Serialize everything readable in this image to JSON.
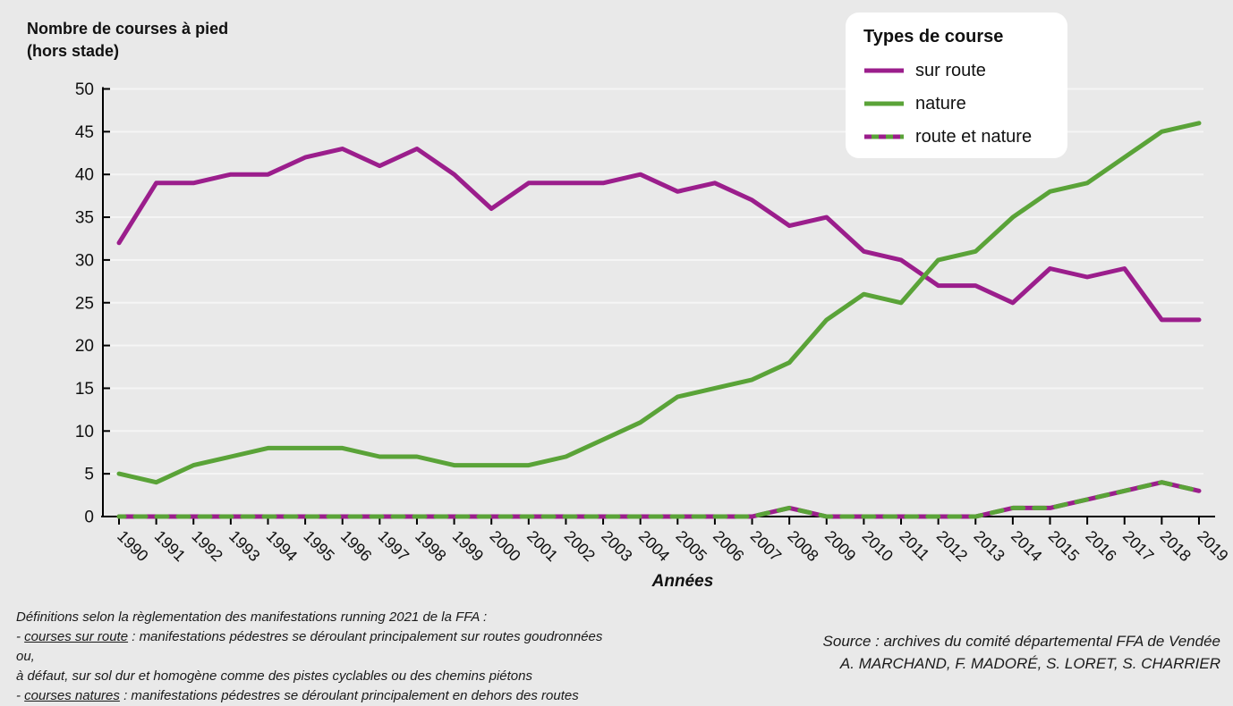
{
  "title": {
    "line1": "Nombre de courses à pied",
    "line2": "(hors stade)"
  },
  "legend": {
    "title": "Types de course",
    "items": [
      {
        "label": "sur route",
        "swatch": "solid-purple"
      },
      {
        "label": "nature",
        "swatch": "solid-green"
      },
      {
        "label": "route et nature",
        "swatch": "dashed-purple-green"
      }
    ]
  },
  "x_axis_title": "Années",
  "footnote": {
    "line1": "Définitions selon la règlementation des manifestations running 2021 de la FFA :",
    "line2_prefix": "- ",
    "line2_underlined": "courses sur route",
    "line2_rest": " : manifestations pédestres se déroulant principalement sur routes goudronnées ou,",
    "line3": "à défaut, sur sol dur et homogène comme des pistes cyclables ou des chemins piétons",
    "line4_prefix": "- ",
    "line4_underlined": "courses natures",
    "line4_rest": " : manifestations pédestres se déroulant principalement en dehors des routes"
  },
  "source": {
    "line1": "Source : archives du comité départemental FFA de Vendée",
    "line2": "A. MARCHAND, F. MADORÉ, S. LORET, S. CHARRIER"
  },
  "colors": {
    "purple": "#9B1E8C",
    "green": "#5AA338",
    "background": "#E9E9E9",
    "gridline": "#F5F5F5",
    "axis": "#000000",
    "legend_background": "#FFFFFF",
    "text": "#111111"
  },
  "chart_data": {
    "type": "line",
    "title": "Nombre de courses à pied (hors stade)",
    "xlabel": "Années",
    "ylabel": "Nombre de courses à pied (hors stade)",
    "ylim": [
      0,
      50
    ],
    "ytick_step": 5,
    "grid": "horizontal",
    "legend_position": "top-right",
    "categories": [
      "1990",
      "1991",
      "1992",
      "1993",
      "1994",
      "1995",
      "1996",
      "1997",
      "1998",
      "1999",
      "2000",
      "2001",
      "2002",
      "2003",
      "2004",
      "2005",
      "2006",
      "2007",
      "2008",
      "2009",
      "2010",
      "2011",
      "2012",
      "2013",
      "2014",
      "2015",
      "2016",
      "2017",
      "2018",
      "2019"
    ],
    "series": [
      {
        "name": "sur route",
        "color": "purple",
        "dashed": false,
        "values": [
          32,
          39,
          39,
          40,
          40,
          42,
          43,
          41,
          43,
          40,
          36,
          39,
          39,
          39,
          40,
          38,
          39,
          37,
          34,
          35,
          31,
          30,
          27,
          27,
          25,
          29,
          28,
          29,
          23,
          23
        ]
      },
      {
        "name": "nature",
        "color": "green",
        "dashed": false,
        "values": [
          5,
          4,
          6,
          7,
          8,
          8,
          8,
          7,
          7,
          6,
          6,
          6,
          7,
          9,
          11,
          14,
          15,
          16,
          18,
          23,
          26,
          25,
          30,
          31,
          35,
          38,
          39,
          42,
          45,
          46
        ]
      },
      {
        "name": "route et nature",
        "color": "purple",
        "dash_overlay_color": "green",
        "dashed": true,
        "values": [
          0,
          0,
          0,
          0,
          0,
          0,
          0,
          0,
          0,
          0,
          0,
          0,
          0,
          0,
          0,
          0,
          0,
          0,
          1,
          0,
          0,
          0,
          0,
          0,
          1,
          1,
          2,
          3,
          4,
          3
        ]
      }
    ]
  }
}
